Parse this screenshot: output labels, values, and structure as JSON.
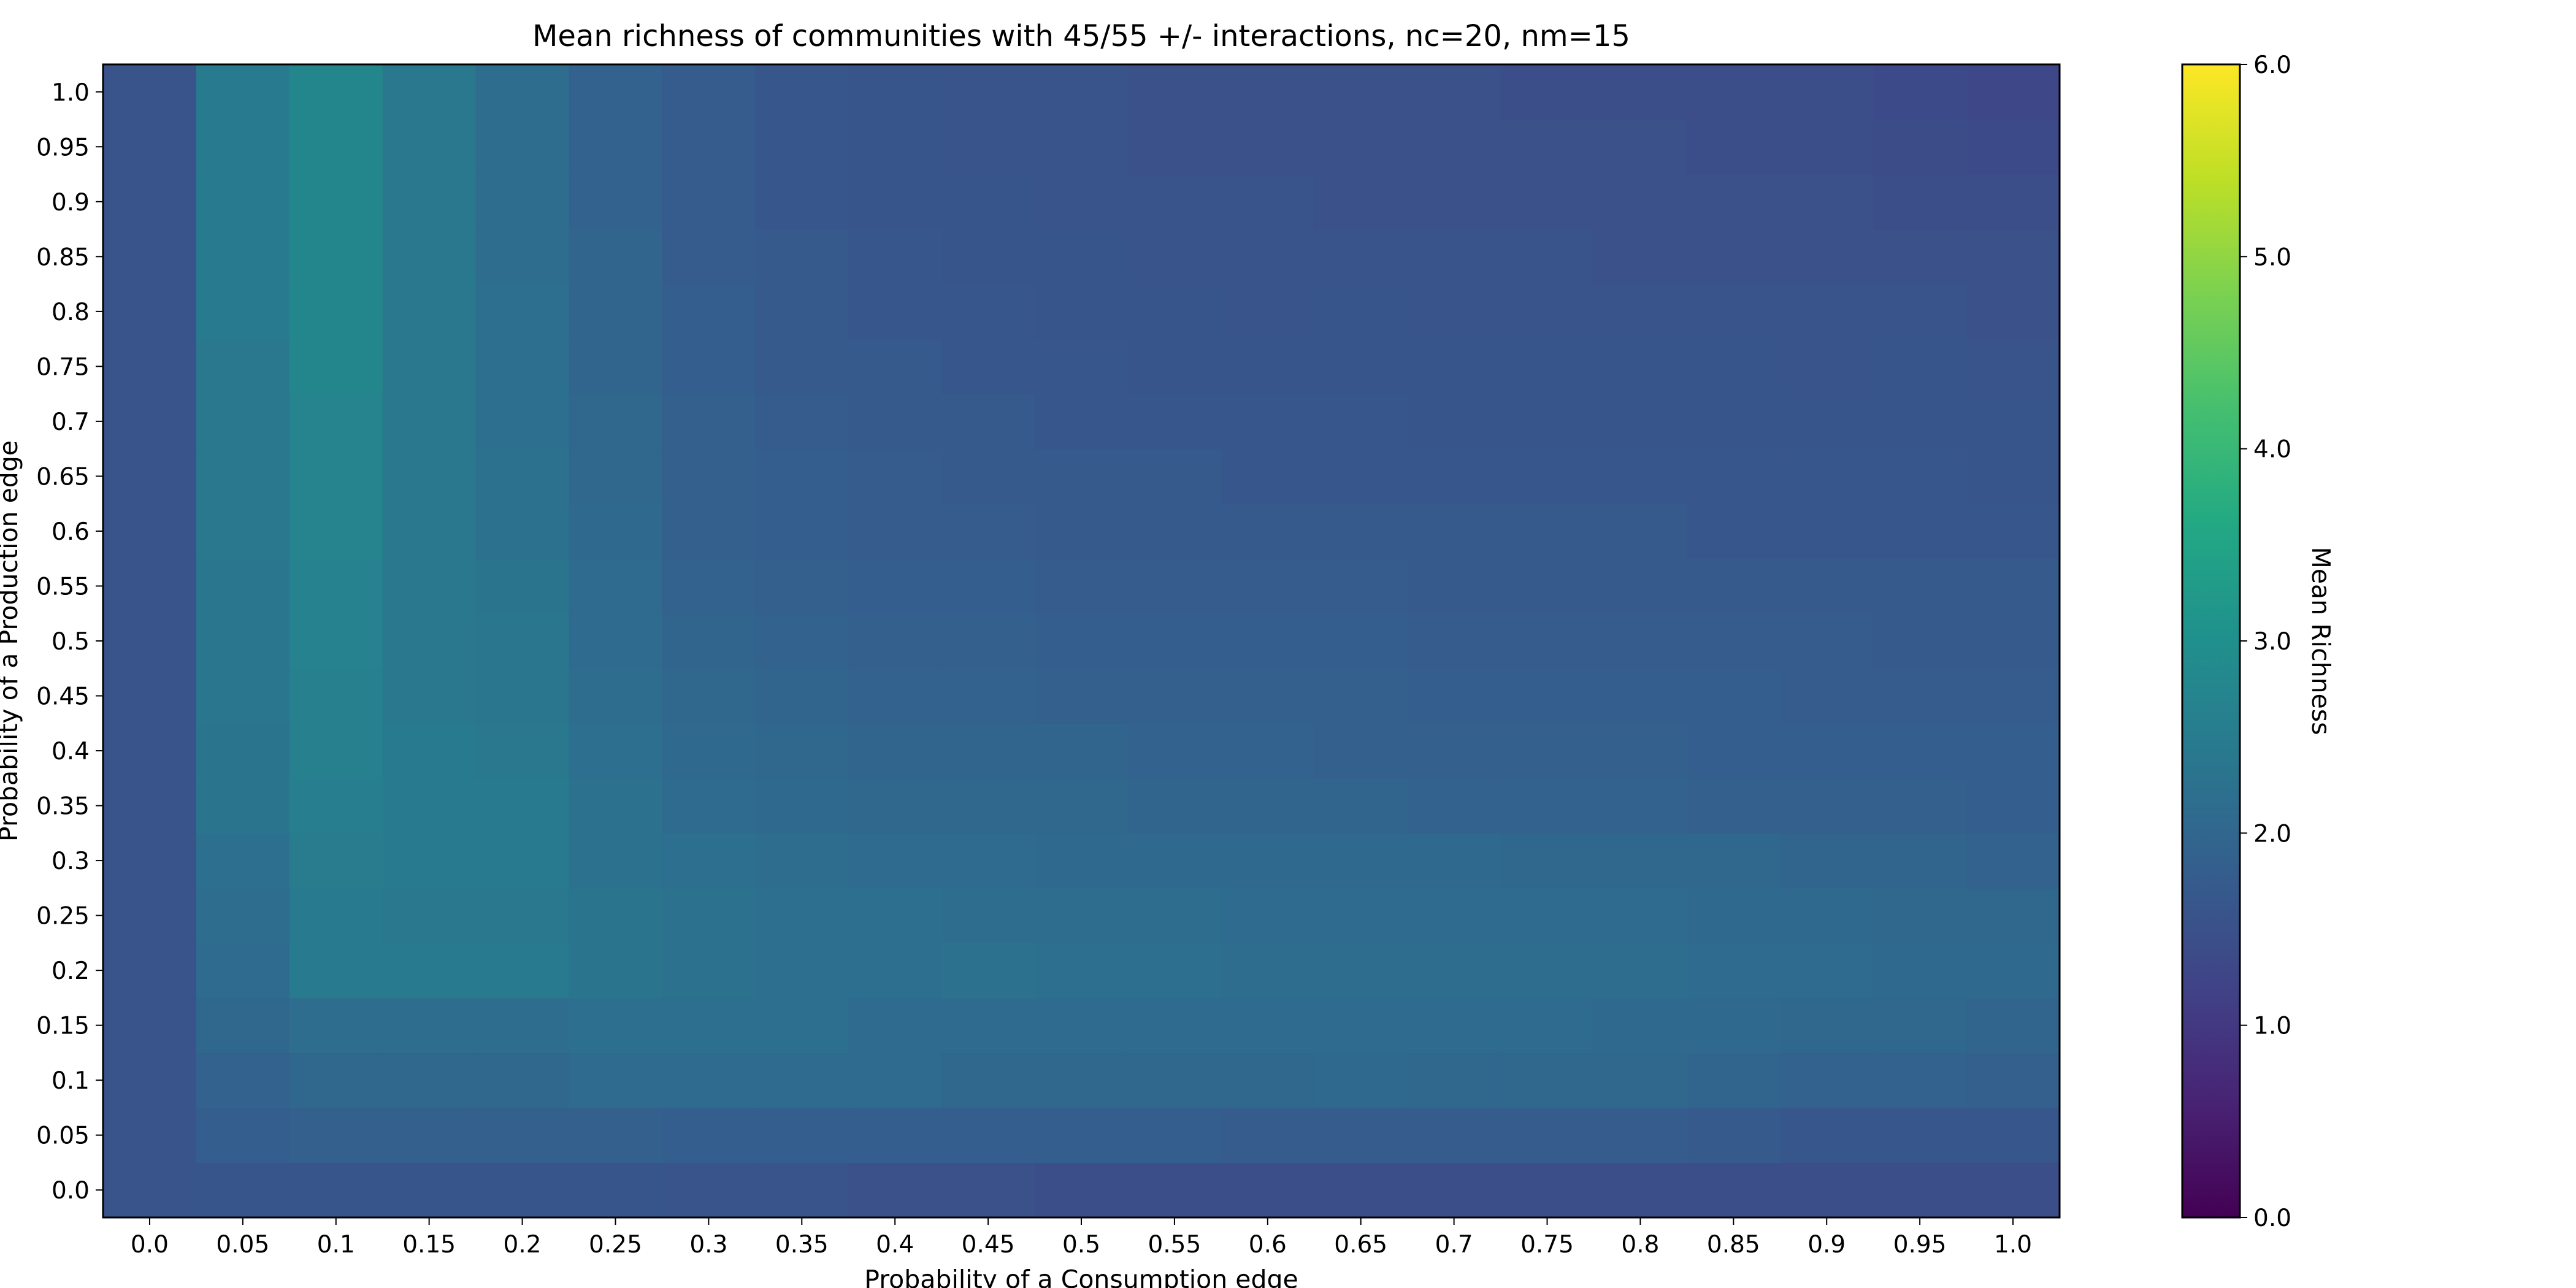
{
  "chart_data": {
    "type": "heatmap",
    "title": "Mean richness of communities with 45/55 +/- interactions, nc=20, nm=15",
    "xlabel": "Probability of a Consumption edge",
    "ylabel": "Probability of a Production edge",
    "x_tick_labels": [
      "0.0",
      "0.05",
      "0.1",
      "0.15",
      "0.2",
      "0.25",
      "0.3",
      "0.35",
      "0.4",
      "0.45",
      "0.5",
      "0.55",
      "0.6",
      "0.65",
      "0.7",
      "0.75",
      "0.8",
      "0.85",
      "0.9",
      "0.95",
      "1.0"
    ],
    "y_tick_labels": [
      "0.0",
      "0.05",
      "0.1",
      "0.15",
      "0.2",
      "0.25",
      "0.3",
      "0.35",
      "0.4",
      "0.45",
      "0.5",
      "0.55",
      "0.6",
      "0.65",
      "0.7",
      "0.75",
      "0.8",
      "0.85",
      "0.9",
      "0.95",
      "1.0"
    ],
    "colorbar": {
      "label": "Mean Richness",
      "colormap": "viridis",
      "vmin": 0.0,
      "vmax": 6.0,
      "tick_labels": [
        "0.0",
        "1.0",
        "2.0",
        "3.0",
        "4.0",
        "5.0",
        "6.0"
      ]
    },
    "row_order": "rows listed from y=0.0 (bottom) to y=1.0 (top); columns from x=0.0 to x=1.0",
    "values": [
      [
        1.55,
        1.6,
        1.6,
        1.6,
        1.6,
        1.6,
        1.55,
        1.55,
        1.5,
        1.5,
        1.45,
        1.45,
        1.45,
        1.45,
        1.45,
        1.45,
        1.45,
        1.45,
        1.45,
        1.45,
        1.45
      ],
      [
        1.55,
        1.8,
        1.85,
        1.85,
        1.85,
        1.85,
        1.8,
        1.8,
        1.8,
        1.8,
        1.8,
        1.8,
        1.75,
        1.75,
        1.75,
        1.75,
        1.75,
        1.7,
        1.65,
        1.65,
        1.65
      ],
      [
        1.55,
        1.9,
        2.0,
        2.0,
        2.0,
        2.1,
        2.1,
        2.1,
        2.1,
        2.0,
        2.0,
        2.0,
        2.0,
        2.05,
        2.0,
        2.0,
        2.0,
        1.95,
        1.9,
        1.9,
        1.85
      ],
      [
        1.55,
        2.0,
        2.15,
        2.15,
        2.15,
        2.2,
        2.2,
        2.2,
        2.1,
        2.1,
        2.1,
        2.1,
        2.1,
        2.1,
        2.1,
        2.1,
        2.05,
        2.05,
        2.0,
        2.0,
        1.95
      ],
      [
        1.55,
        2.1,
        2.45,
        2.45,
        2.45,
        2.3,
        2.25,
        2.2,
        2.2,
        2.25,
        2.2,
        2.2,
        2.15,
        2.15,
        2.15,
        2.15,
        2.15,
        2.1,
        2.1,
        2.05,
        2.05
      ],
      [
        1.55,
        2.15,
        2.45,
        2.4,
        2.4,
        2.3,
        2.25,
        2.2,
        2.2,
        2.15,
        2.15,
        2.15,
        2.1,
        2.1,
        2.1,
        2.1,
        2.1,
        2.05,
        2.05,
        2.0,
        2.0
      ],
      [
        1.55,
        2.2,
        2.5,
        2.45,
        2.45,
        2.25,
        2.2,
        2.15,
        2.1,
        2.1,
        2.05,
        2.05,
        2.05,
        2.05,
        2.05,
        2.0,
        2.0,
        2.0,
        1.95,
        1.95,
        1.9
      ],
      [
        1.55,
        2.3,
        2.55,
        2.45,
        2.45,
        2.25,
        2.1,
        2.05,
        2.0,
        2.0,
        2.0,
        1.95,
        1.95,
        1.95,
        1.9,
        1.9,
        1.9,
        1.85,
        1.85,
        1.85,
        1.8
      ],
      [
        1.55,
        2.3,
        2.6,
        2.45,
        2.4,
        2.2,
        2.05,
        2.0,
        1.95,
        1.95,
        1.95,
        1.9,
        1.9,
        1.85,
        1.85,
        1.85,
        1.85,
        1.8,
        1.8,
        1.8,
        1.8
      ],
      [
        1.55,
        2.35,
        2.6,
        2.4,
        2.35,
        2.15,
        2.0,
        1.95,
        1.9,
        1.9,
        1.85,
        1.85,
        1.85,
        1.85,
        1.8,
        1.8,
        1.8,
        1.8,
        1.75,
        1.75,
        1.75
      ],
      [
        1.55,
        2.35,
        2.65,
        2.4,
        2.35,
        2.1,
        1.95,
        1.9,
        1.85,
        1.85,
        1.8,
        1.8,
        1.8,
        1.8,
        1.75,
        1.75,
        1.75,
        1.75,
        1.75,
        1.7,
        1.7
      ],
      [
        1.55,
        2.35,
        2.65,
        2.4,
        2.3,
        2.1,
        1.9,
        1.85,
        1.8,
        1.8,
        1.75,
        1.75,
        1.75,
        1.75,
        1.7,
        1.7,
        1.7,
        1.7,
        1.7,
        1.7,
        1.7
      ],
      [
        1.55,
        2.4,
        2.7,
        2.4,
        2.25,
        2.05,
        1.85,
        1.8,
        1.75,
        1.75,
        1.7,
        1.7,
        1.7,
        1.7,
        1.7,
        1.7,
        1.7,
        1.65,
        1.65,
        1.65,
        1.65
      ],
      [
        1.55,
        2.4,
        2.7,
        2.4,
        2.25,
        2.0,
        1.85,
        1.8,
        1.75,
        1.7,
        1.7,
        1.7,
        1.65,
        1.65,
        1.65,
        1.65,
        1.65,
        1.65,
        1.65,
        1.65,
        1.6
      ],
      [
        1.55,
        2.4,
        2.7,
        2.4,
        2.2,
        2.0,
        1.85,
        1.75,
        1.7,
        1.7,
        1.65,
        1.65,
        1.65,
        1.65,
        1.6,
        1.6,
        1.6,
        1.6,
        1.6,
        1.6,
        1.6
      ],
      [
        1.55,
        2.4,
        2.75,
        2.4,
        2.2,
        1.95,
        1.8,
        1.7,
        1.7,
        1.65,
        1.65,
        1.6,
        1.6,
        1.6,
        1.6,
        1.6,
        1.6,
        1.6,
        1.55,
        1.6,
        1.55
      ],
      [
        1.55,
        2.45,
        2.75,
        2.4,
        2.2,
        1.95,
        1.8,
        1.7,
        1.65,
        1.65,
        1.6,
        1.6,
        1.55,
        1.6,
        1.55,
        1.55,
        1.55,
        1.55,
        1.55,
        1.55,
        1.5
      ],
      [
        1.55,
        2.45,
        2.75,
        2.4,
        2.15,
        1.95,
        1.75,
        1.7,
        1.65,
        1.6,
        1.6,
        1.55,
        1.55,
        1.55,
        1.55,
        1.55,
        1.5,
        1.5,
        1.5,
        1.5,
        1.5
      ],
      [
        1.55,
        2.45,
        2.75,
        2.4,
        2.15,
        1.9,
        1.75,
        1.65,
        1.6,
        1.6,
        1.55,
        1.55,
        1.55,
        1.5,
        1.5,
        1.5,
        1.5,
        1.5,
        1.5,
        1.45,
        1.45
      ],
      [
        1.55,
        2.45,
        2.75,
        2.4,
        2.15,
        1.9,
        1.75,
        1.65,
        1.6,
        1.55,
        1.55,
        1.5,
        1.5,
        1.5,
        1.5,
        1.5,
        1.5,
        1.45,
        1.45,
        1.4,
        1.35
      ],
      [
        1.55,
        2.45,
        2.75,
        2.4,
        2.15,
        1.9,
        1.75,
        1.65,
        1.6,
        1.55,
        1.55,
        1.5,
        1.5,
        1.5,
        1.5,
        1.45,
        1.45,
        1.45,
        1.45,
        1.35,
        1.3
      ]
    ]
  }
}
